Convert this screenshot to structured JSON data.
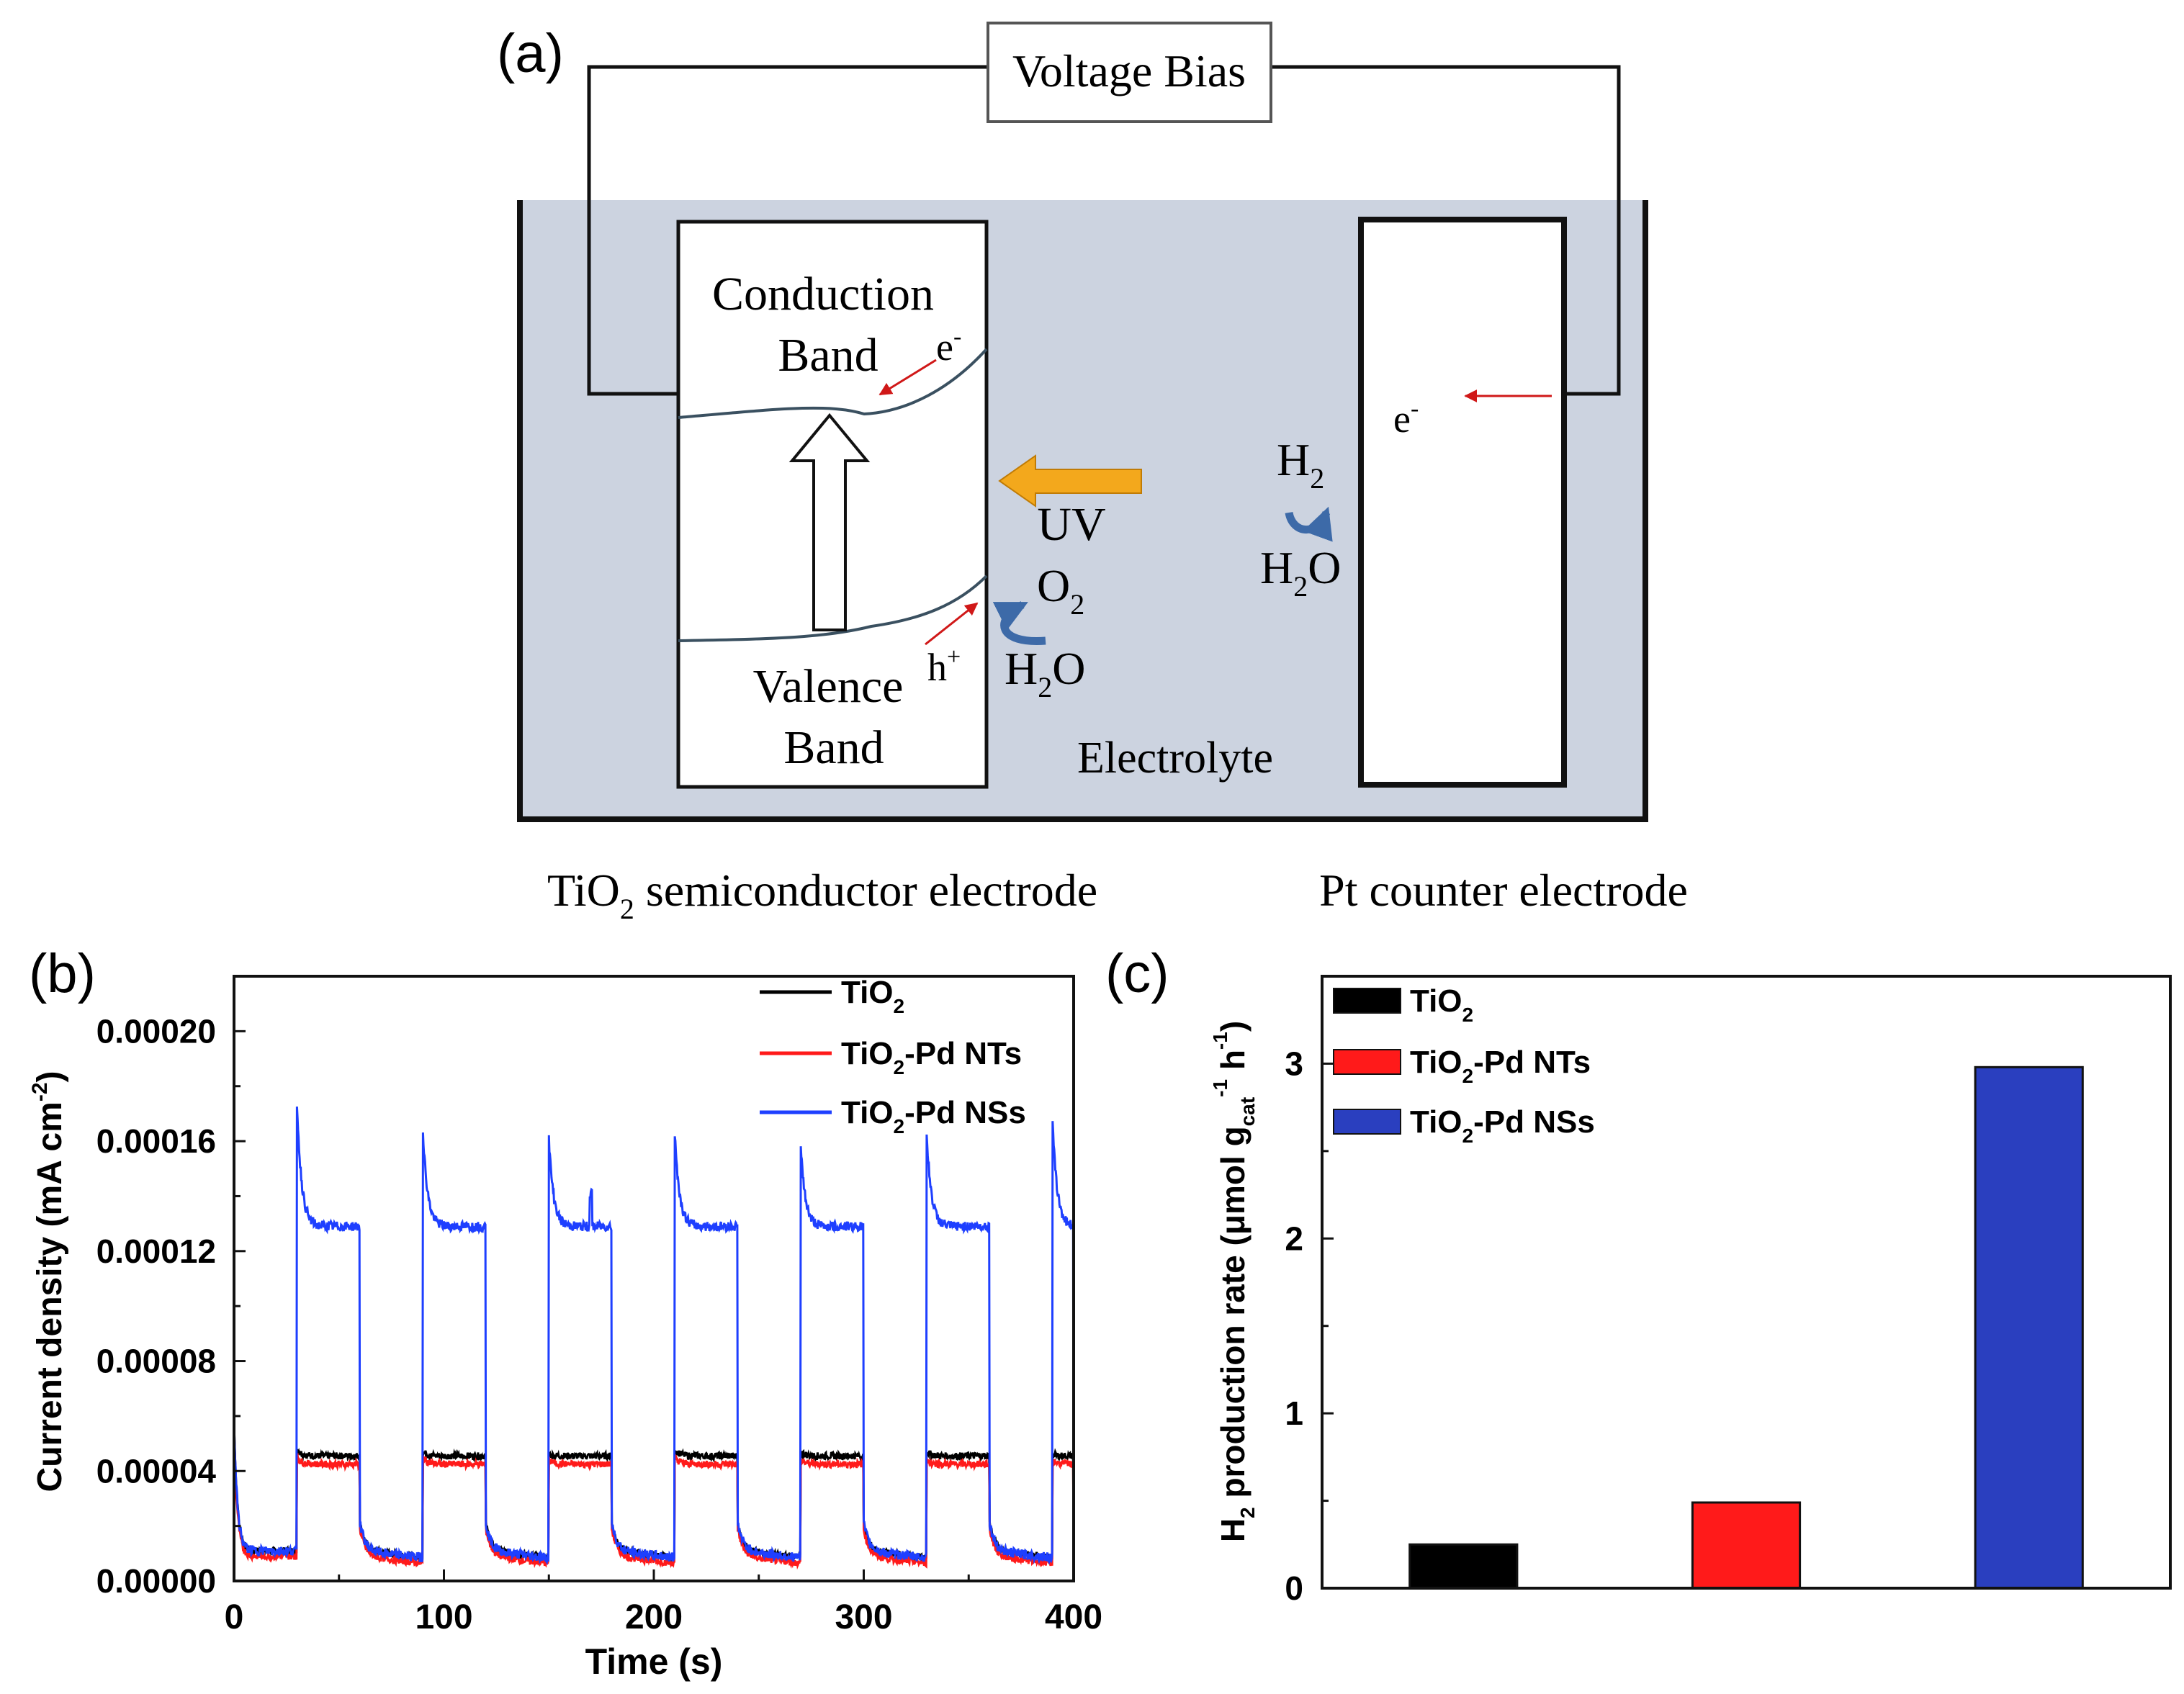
{
  "colors": {
    "tio2": "#000000",
    "tio2_pd_nts": "#ff1a1a",
    "tio2_pd_nss": "#1e3fff",
    "nss_bar_fill": "#2a3fbf",
    "electrolyte": "#ccd3e0",
    "uv_arrow": "#f3a81c",
    "red_arrow": "#d01818",
    "curved_arrow": "#3d6aa8"
  },
  "panel_a": {
    "label": "(a)",
    "voltage_bias": "Voltage Bias",
    "conduction_band_line1": "Conduction",
    "conduction_band_line2": "Band",
    "valence_band_line1": "Valence",
    "valence_band_line2": "Band",
    "electron": "e",
    "electron_sup": "-",
    "hole": "h",
    "hole_sup": "+",
    "uv": "UV",
    "o2_main": "O",
    "o2_sub": "2",
    "h2o_left_a": "H",
    "h2o_left_sub": "2",
    "h2o_left_b": "O",
    "h2_main": "H",
    "h2_sub": "2",
    "h2o_right_a": "H",
    "h2o_right_sub": "2",
    "h2o_right_b": "O",
    "electrolyte": "Electrolyte",
    "tio2_electrode_a": "TiO",
    "tio2_electrode_sub": "2",
    "tio2_electrode_b": " semiconductor electrode",
    "pt_electrode": "Pt counter electrode"
  },
  "chart_data": [
    {
      "panel": "(b)",
      "type": "line",
      "xlabel": "Time (s)",
      "ylabel_main": "Current density (mA cm",
      "ylabel_sup": "-2",
      "ylabel_end": ")",
      "xlim": [
        0,
        400
      ],
      "ylim": [
        0,
        0.00022
      ],
      "xticks": [
        "0",
        "100",
        "200",
        "300",
        "400"
      ],
      "yticks": [
        "0.00000",
        "0.00004",
        "0.00008",
        "0.00012",
        "0.00016",
        "0.00020"
      ],
      "light_on_s": [
        30,
        90,
        150,
        210,
        270,
        330,
        390
      ],
      "light_off_s": [
        60,
        120,
        180,
        240,
        300,
        360
      ],
      "series": [
        {
          "name": "TiO2",
          "legend_a": "TiO",
          "legend_sub": "2",
          "legend_b": "",
          "dark_current": 1.1e-05,
          "light_current": 4.55e-05,
          "spike_peaks": [
            4.8e-05,
            4.7e-05,
            4.6e-05,
            4.8e-05,
            4.7e-05,
            4.7e-05,
            4.6e-05
          ]
        },
        {
          "name": "TiO2-Pd NTs",
          "legend_a": "TiO",
          "legend_sub": "2",
          "legend_b": "-Pd NTs",
          "dark_current": 9e-06,
          "light_current": 4.25e-05,
          "spike_peaks": [
            4.5e-05,
            4.5e-05,
            4.4e-05,
            4.5e-05,
            4.4e-05,
            4.4e-05,
            4.4e-05
          ]
        },
        {
          "name": "TiO2-Pd NSs",
          "legend_a": "TiO",
          "legend_sub": "2",
          "legend_b": "-Pd NSs",
          "dark_current": 1.1e-05,
          "light_current": 0.000129,
          "spike_peaks": [
            0.000174,
            0.000164,
            0.000161,
            0.000163,
            0.000158,
            0.000163,
            0.000166
          ]
        }
      ]
    },
    {
      "panel": "(c)",
      "type": "bar",
      "ylabel_a": "H",
      "ylabel_sub1": "2",
      "ylabel_b": " production rate (μmol g",
      "ylabel_sub2": "cat",
      "ylabel_sup1": "-1",
      "ylabel_c": " h",
      "ylabel_sup2": "-1",
      "ylabel_d": ")",
      "ylim": [
        0,
        3.5
      ],
      "yticks": [
        "0",
        "1",
        "2",
        "3"
      ],
      "categories": [
        "TiO2",
        "TiO2-Pd NTs",
        "TiO2-Pd NSs"
      ],
      "values": [
        0.25,
        0.49,
        2.98
      ],
      "legend": [
        {
          "a": "TiO",
          "sub": "2",
          "b": ""
        },
        {
          "a": "TiO",
          "sub": "2",
          "b": "-Pd NTs"
        },
        {
          "a": "TiO",
          "sub": "2",
          "b": "-Pd NSs"
        }
      ]
    }
  ]
}
